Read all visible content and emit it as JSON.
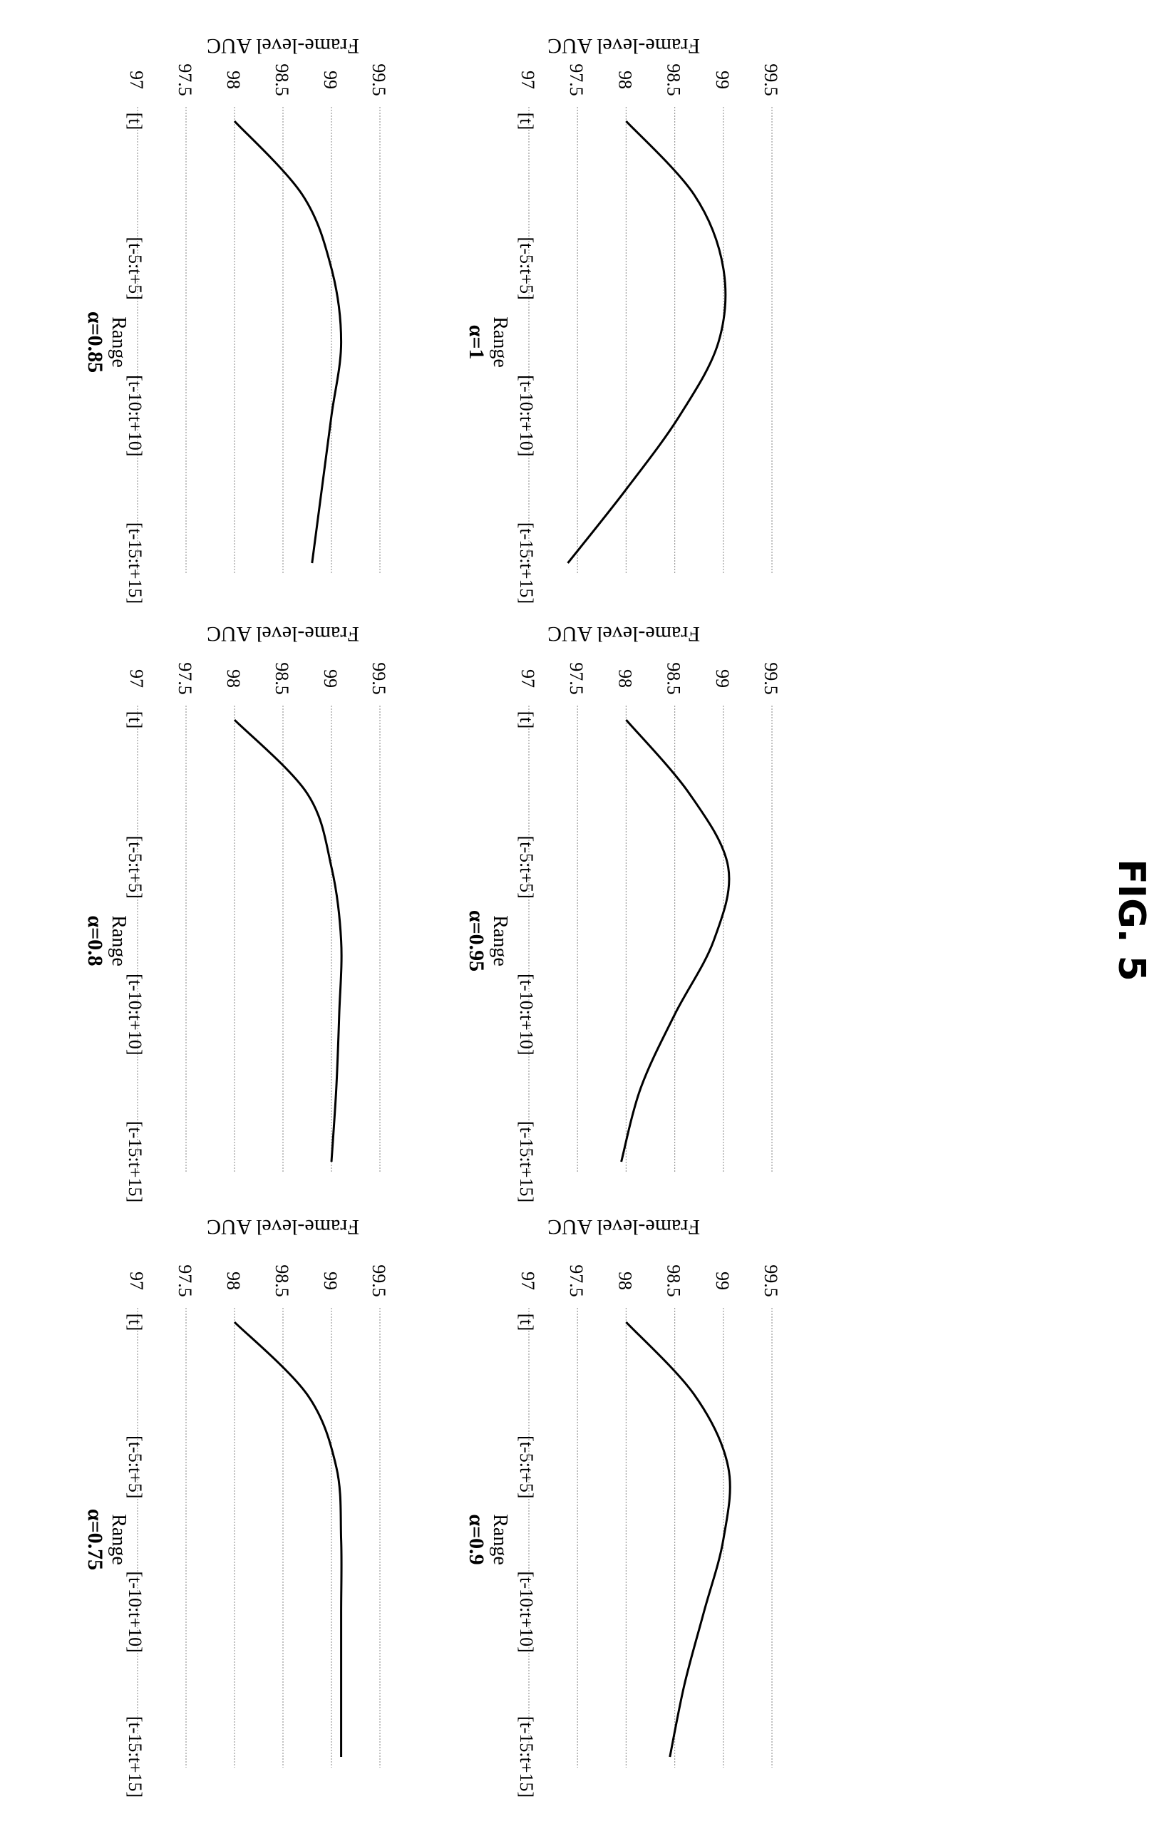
{
  "figure_label": "FIG. 5",
  "chart_data": [
    {
      "type": "line",
      "ylabel": "Frame-level AUC",
      "xlabel": "Range",
      "caption": "α=1",
      "categories": [
        "[t]",
        "[t-5:t+5]",
        "[t-10:t+10]",
        "[t-15:t+15]"
      ],
      "yticks": [
        "99.5",
        "99",
        "98.5",
        "98",
        "97.5",
        "97"
      ],
      "ylim": [
        97,
        99.5
      ],
      "grid": true,
      "points": [
        {
          "x": 0,
          "y": 98.0
        },
        {
          "x": 0.5,
          "y": 98.7
        },
        {
          "x": 1,
          "y": 99.0
        },
        {
          "x": 1.5,
          "y": 98.95
        },
        {
          "x": 2,
          "y": 98.55
        },
        {
          "x": 2.5,
          "y": 98.0
        },
        {
          "x": 3,
          "y": 97.4
        }
      ]
    },
    {
      "type": "line",
      "ylabel": "Frame-level AUC",
      "xlabel": "Range",
      "caption": "α=0.95",
      "categories": [
        "[t]",
        "[t-5:t+5]",
        "[t-10:t+10]",
        "[t-15:t+15]"
      ],
      "yticks": [
        "99.5",
        "99",
        "98.5",
        "98",
        "97.5",
        "97"
      ],
      "ylim": [
        97,
        99.5
      ],
      "grid": true,
      "points": [
        {
          "x": 0,
          "y": 98.0
        },
        {
          "x": 0.5,
          "y": 98.65
        },
        {
          "x": 1,
          "y": 99.05
        },
        {
          "x": 1.5,
          "y": 98.9
        },
        {
          "x": 2,
          "y": 98.5
        },
        {
          "x": 2.5,
          "y": 98.15
        },
        {
          "x": 3,
          "y": 97.95
        }
      ]
    },
    {
      "type": "line",
      "ylabel": "Frame-level AUC",
      "xlabel": "Range",
      "caption": "α=0.9",
      "categories": [
        "[t]",
        "[t-5:t+5]",
        "[t-10:t+10]",
        "[t-15:t+15]"
      ],
      "yticks": [
        "99.5",
        "99",
        "98.5",
        "98",
        "97.5",
        "97"
      ],
      "ylim": [
        97,
        99.5
      ],
      "grid": true,
      "points": [
        {
          "x": 0,
          "y": 98.0
        },
        {
          "x": 0.5,
          "y": 98.7
        },
        {
          "x": 1,
          "y": 99.05
        },
        {
          "x": 1.5,
          "y": 99.0
        },
        {
          "x": 2,
          "y": 98.8
        },
        {
          "x": 2.5,
          "y": 98.6
        },
        {
          "x": 3,
          "y": 98.45
        }
      ]
    },
    {
      "type": "line",
      "ylabel": "Frame-level AUC",
      "xlabel": "Range",
      "caption": "α=0.85",
      "categories": [
        "[t]",
        "[t-5:t+5]",
        "[t-10:t+10]",
        "[t-15:t+15]"
      ],
      "yticks": [
        "99.5",
        "99",
        "98.5",
        "98",
        "97.5",
        "97"
      ],
      "ylim": [
        97,
        99.5
      ],
      "grid": true,
      "points": [
        {
          "x": 0,
          "y": 98.0
        },
        {
          "x": 0.5,
          "y": 98.7
        },
        {
          "x": 1,
          "y": 99.0
        },
        {
          "x": 1.5,
          "y": 99.1
        },
        {
          "x": 2,
          "y": 99.0
        },
        {
          "x": 2.5,
          "y": 98.9
        },
        {
          "x": 3,
          "y": 98.8
        }
      ]
    },
    {
      "type": "line",
      "ylabel": "Frame-level AUC",
      "xlabel": "Range",
      "caption": "α=0.8",
      "categories": [
        "[t]",
        "[t-5:t+5]",
        "[t-10:t+10]",
        "[t-15:t+15]"
      ],
      "yticks": [
        "99.5",
        "99",
        "98.5",
        "98",
        "97.5",
        "97"
      ],
      "ylim": [
        97,
        99.5
      ],
      "grid": true,
      "points": [
        {
          "x": 0,
          "y": 98.0
        },
        {
          "x": 0.5,
          "y": 98.75
        },
        {
          "x": 1,
          "y": 99.0
        },
        {
          "x": 1.5,
          "y": 99.1
        },
        {
          "x": 2,
          "y": 99.08
        },
        {
          "x": 2.5,
          "y": 99.05
        },
        {
          "x": 3,
          "y": 99.0
        }
      ]
    },
    {
      "type": "line",
      "ylabel": "Frame-level AUC",
      "xlabel": "Range",
      "caption": "α=0.75",
      "categories": [
        "[t]",
        "[t-5:t+5]",
        "[t-10:t+10]",
        "[t-15:t+15]"
      ],
      "yticks": [
        "99.5",
        "99",
        "98.5",
        "98",
        "97.5",
        "97"
      ],
      "ylim": [
        97,
        99.5
      ],
      "grid": true,
      "points": [
        {
          "x": 0,
          "y": 98.0
        },
        {
          "x": 0.5,
          "y": 98.75
        },
        {
          "x": 1,
          "y": 99.05
        },
        {
          "x": 1.5,
          "y": 99.1
        },
        {
          "x": 2,
          "y": 99.1
        },
        {
          "x": 2.5,
          "y": 99.1
        },
        {
          "x": 3,
          "y": 99.1
        }
      ]
    }
  ]
}
